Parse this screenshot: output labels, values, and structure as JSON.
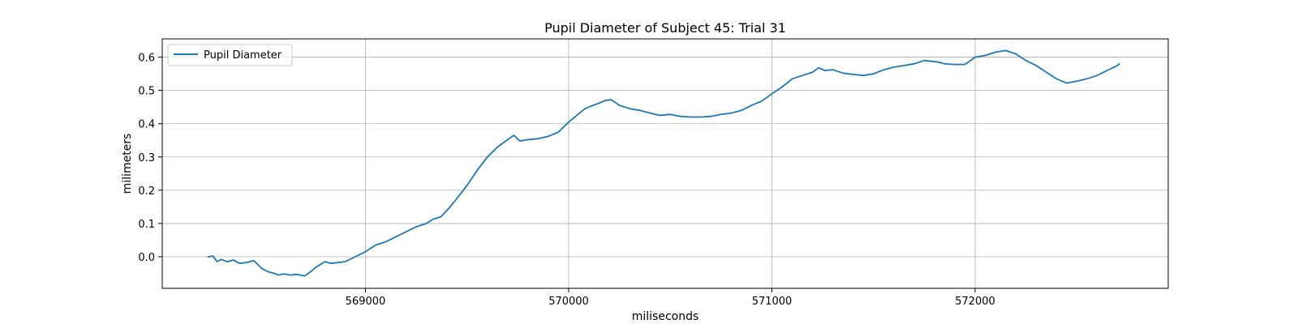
{
  "chart_data": {
    "type": "line",
    "title": "Pupil Diameter of Subject 45: Trial 31",
    "xlabel": "miliseconds",
    "ylabel": "milimeters",
    "xlim": [
      568000,
      572950
    ],
    "ylim": [
      -0.095,
      0.655
    ],
    "xticks": [
      569000,
      570000,
      571000,
      572000
    ],
    "xtick_labels": [
      "569000",
      "570000",
      "571000",
      "572000"
    ],
    "yticks": [
      0.0,
      0.1,
      0.2,
      0.3,
      0.4,
      0.5,
      0.6
    ],
    "ytick_labels": [
      "0.0",
      "0.1",
      "0.2",
      "0.3",
      "0.4",
      "0.5",
      "0.6"
    ],
    "grid": true,
    "legend": {
      "position": "top-left",
      "entries": [
        "Pupil Diameter"
      ]
    },
    "series": [
      {
        "name": "Pupil Diameter",
        "color": "#1f77b4",
        "x": [
          568225,
          568250,
          568270,
          568290,
          568320,
          568350,
          568380,
          568410,
          568450,
          568490,
          568520,
          568550,
          568570,
          568600,
          568630,
          568660,
          568700,
          568730,
          568760,
          568800,
          568830,
          568860,
          568900,
          568950,
          569000,
          569050,
          569100,
          569150,
          569200,
          569250,
          569300,
          569330,
          569370,
          569410,
          569450,
          569500,
          569550,
          569600,
          569650,
          569700,
          569730,
          569760,
          569800,
          569850,
          569900,
          569950,
          570000,
          570050,
          570080,
          570120,
          570150,
          570180,
          570210,
          570250,
          570300,
          570350,
          570400,
          570450,
          570500,
          570550,
          570600,
          570650,
          570700,
          570750,
          570800,
          570850,
          570900,
          570950,
          571000,
          571050,
          571100,
          571150,
          571200,
          571230,
          571260,
          571300,
          571350,
          571400,
          571450,
          571500,
          571550,
          571600,
          571650,
          571700,
          571750,
          571780,
          571820,
          571850,
          571900,
          571950,
          572000,
          572050,
          572100,
          572150,
          572200,
          572250,
          572300,
          572350,
          572400,
          572450,
          572500,
          572550,
          572600,
          572650,
          572700,
          572710
        ],
        "y": [
          0.0,
          0.002,
          -0.015,
          -0.008,
          -0.015,
          -0.01,
          -0.02,
          -0.018,
          -0.012,
          -0.035,
          -0.045,
          -0.05,
          -0.055,
          -0.052,
          -0.055,
          -0.053,
          -0.058,
          -0.045,
          -0.03,
          -0.015,
          -0.02,
          -0.018,
          -0.015,
          0.0,
          0.015,
          0.035,
          0.045,
          0.06,
          0.075,
          0.09,
          0.1,
          0.112,
          0.12,
          0.145,
          0.175,
          0.215,
          0.26,
          0.3,
          0.33,
          0.352,
          0.365,
          0.348,
          0.352,
          0.355,
          0.362,
          0.375,
          0.405,
          0.43,
          0.445,
          0.455,
          0.462,
          0.47,
          0.472,
          0.455,
          0.445,
          0.44,
          0.432,
          0.425,
          0.428,
          0.422,
          0.42,
          0.42,
          0.422,
          0.428,
          0.432,
          0.44,
          0.455,
          0.468,
          0.49,
          0.51,
          0.535,
          0.545,
          0.555,
          0.568,
          0.56,
          0.562,
          0.552,
          0.548,
          0.545,
          0.55,
          0.562,
          0.57,
          0.575,
          0.58,
          0.59,
          0.588,
          0.585,
          0.58,
          0.578,
          0.578,
          0.6,
          0.605,
          0.615,
          0.62,
          0.61,
          0.59,
          0.575,
          0.555,
          0.535,
          0.522,
          0.528,
          0.535,
          0.545,
          0.56,
          0.575,
          0.58
        ]
      }
    ]
  }
}
